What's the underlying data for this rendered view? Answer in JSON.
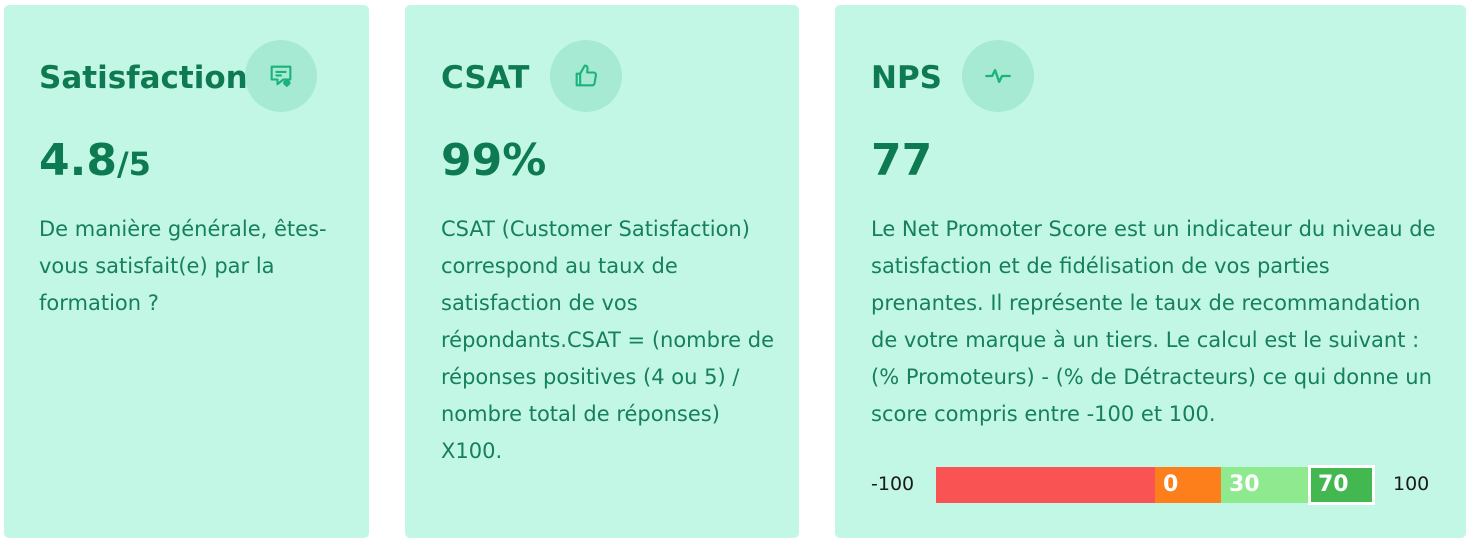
{
  "cards": [
    {
      "title": "Satisfaction",
      "icon": "chat-heart-icon",
      "value": "4.8",
      "value_suffix": "/5",
      "description": "De manière générale, êtes-vous satisfait(e) par la formation ?"
    },
    {
      "title": "CSAT",
      "icon": "thumbs-up-icon",
      "value": "99%",
      "value_suffix": "",
      "description": "CSAT (Customer Satisfaction) correspond au taux de satisfaction de vos répondants.CSAT = (nombre de réponses positives (4 ou 5) / nombre total de réponses) X100."
    },
    {
      "title": "NPS",
      "icon": "pulse-icon",
      "value": "77",
      "value_suffix": "",
      "description": "Le Net Promoter Score est un indicateur du niveau de satisfaction et de fidélisation de vos parties prenantes. Il représente le taux de recommandation de votre marque à un tiers. Le calcul est le suivant : (% Promoteurs) - (% de Détracteurs) ce qui donne un score compris entre -100 et 100."
    }
  ],
  "nps_scale": {
    "min_label": "-100",
    "max_label": "100",
    "segments": [
      {
        "label": "",
        "color": "#fa5353"
      },
      {
        "label": "0",
        "color": "#fc7f1c"
      },
      {
        "label": "30",
        "color": "#8fe98f"
      },
      {
        "label": "70",
        "color": "#44b850",
        "highlighted": true
      }
    ]
  },
  "colors": {
    "card_background": "#c3f7e5",
    "icon_circle": "#a6ead3",
    "text_primary": "#0e7a52",
    "icon_color": "#19b37b"
  }
}
